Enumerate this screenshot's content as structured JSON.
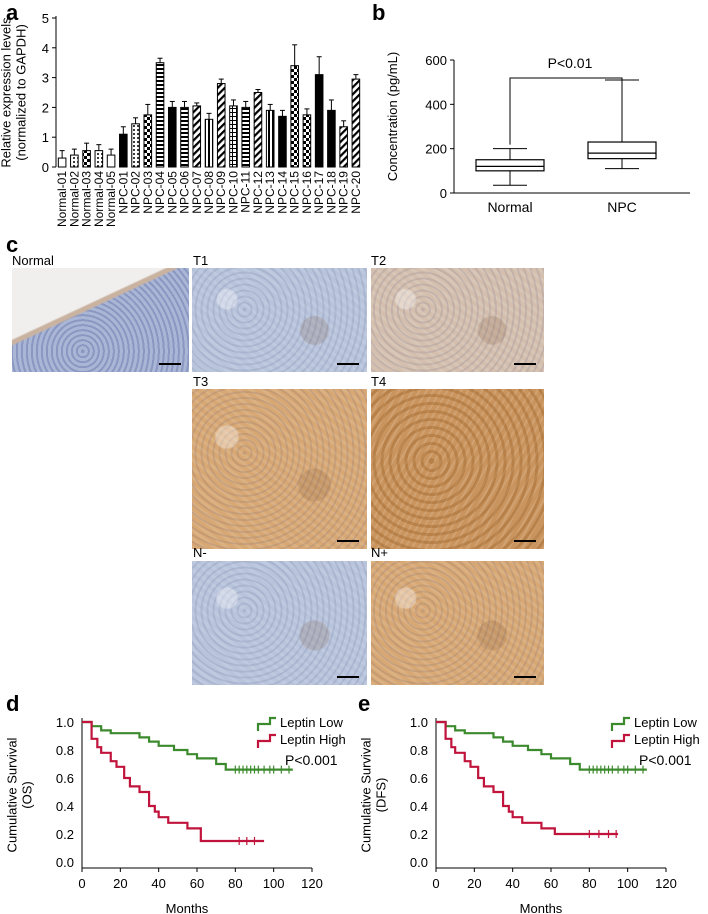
{
  "panels": {
    "a": "a",
    "b": "b",
    "c": "c",
    "d": "d",
    "e": "e"
  },
  "chart_data": [
    {
      "panel": "a",
      "type": "bar",
      "ylabel": "Relative expression levels\n(normalized to GAPDH)",
      "ylim": [
        0,
        5
      ],
      "yticks": [
        0,
        1,
        2,
        3,
        4,
        5
      ],
      "categories": [
        "Normal-01",
        "Normal-02",
        "Normal-03",
        "Normal-04",
        "Normal-05",
        "NPC-01",
        "NPC-02",
        "NPC-03",
        "NPC-04",
        "NPC-05",
        "NPC-06",
        "NPC-07",
        "NPC-08",
        "NPC-09",
        "NPC-10",
        "NPC-11",
        "NPC-12",
        "NPC-13",
        "NPC-14",
        "NPC-15",
        "NPC-16",
        "NPC-17",
        "NPC-18",
        "NPC-19",
        "NPC-20"
      ],
      "values": [
        0.3,
        0.4,
        0.55,
        0.55,
        0.4,
        1.1,
        1.45,
        1.75,
        3.5,
        2.0,
        2.0,
        2.05,
        1.6,
        2.8,
        2.05,
        2.0,
        2.5,
        1.9,
        1.7,
        3.4,
        1.75,
        3.1,
        1.9,
        1.35,
        2.95
      ],
      "errors": [
        0.25,
        0.2,
        0.25,
        0.2,
        0.2,
        0.25,
        0.2,
        0.35,
        0.15,
        0.2,
        0.2,
        0.1,
        0.2,
        0.15,
        0.2,
        0.2,
        0.1,
        0.2,
        0.2,
        0.7,
        0.2,
        0.6,
        0.35,
        0.2,
        0.15
      ],
      "patterns": [
        "open",
        "dots",
        "checker",
        "dots",
        "open",
        "solid",
        "dots",
        "checker",
        "hstripe",
        "solid",
        "hstripe",
        "diag",
        "vstripe",
        "diag",
        "grid",
        "hstripe",
        "diag",
        "vstripe",
        "solid",
        "checker",
        "checker",
        "solid",
        "solid",
        "diag",
        "diag"
      ]
    },
    {
      "panel": "b",
      "type": "boxplot",
      "ylabel": "Concentration (pg/mL)",
      "ylim": [
        0,
        600
      ],
      "yticks": [
        0,
        200,
        400,
        600
      ],
      "categories": [
        "Normal",
        "NPC"
      ],
      "boxes": [
        {
          "min": 35,
          "q1": 100,
          "median": 120,
          "q3": 150,
          "max": 200
        },
        {
          "min": 110,
          "q1": 155,
          "median": 180,
          "q3": 230,
          "max": 510
        }
      ],
      "annotation": "P<0.01"
    },
    {
      "panel": "d",
      "type": "line",
      "subtype": "kaplan-meier",
      "ylabel": "Cumulative Survival\n(OS)",
      "xlabel": "Months",
      "xlim": [
        0,
        120
      ],
      "ylim": [
        0,
        1.0
      ],
      "xticks": [
        0,
        20,
        40,
        60,
        80,
        100,
        120
      ],
      "yticks": [
        0.0,
        0.2,
        0.4,
        0.6,
        0.8,
        1.0
      ],
      "annotation": "P<0.001",
      "series": [
        {
          "name": "Leptin Low",
          "color": "#3c8a2e",
          "x": [
            0,
            5,
            10,
            15,
            20,
            30,
            35,
            40,
            48,
            55,
            60,
            65,
            70,
            75,
            110
          ],
          "y": [
            1.0,
            0.97,
            0.94,
            0.92,
            0.92,
            0.89,
            0.86,
            0.83,
            0.8,
            0.77,
            0.74,
            0.74,
            0.7,
            0.66,
            0.66
          ],
          "censor_x": [
            80,
            82,
            84,
            86,
            88,
            90,
            92,
            95,
            98,
            100,
            104,
            108
          ],
          "censor_y": 0.66
        },
        {
          "name": "Leptin High",
          "color": "#c0143c",
          "x": [
            0,
            5,
            8,
            10,
            15,
            18,
            22,
            25,
            30,
            35,
            38,
            40,
            45,
            55,
            62,
            80,
            95
          ],
          "y": [
            1.0,
            0.88,
            0.82,
            0.78,
            0.72,
            0.68,
            0.6,
            0.54,
            0.5,
            0.4,
            0.36,
            0.32,
            0.28,
            0.24,
            0.15,
            0.15,
            0.15
          ],
          "censor_x": [
            82,
            86,
            90
          ],
          "censor_y": 0.15
        }
      ]
    },
    {
      "panel": "e",
      "type": "line",
      "subtype": "kaplan-meier",
      "ylabel": "Cumulative Survival\n(DFS)",
      "xlabel": "Months",
      "xlim": [
        0,
        120
      ],
      "ylim": [
        0,
        1.0
      ],
      "xticks": [
        0,
        20,
        40,
        60,
        80,
        100,
        120
      ],
      "yticks": [
        0.0,
        0.2,
        0.4,
        0.6,
        0.8,
        1.0
      ],
      "annotation": "P<0.001",
      "series": [
        {
          "name": "Leptin Low",
          "color": "#3c8a2e",
          "x": [
            0,
            5,
            10,
            15,
            20,
            30,
            35,
            40,
            48,
            55,
            60,
            65,
            70,
            75,
            110
          ],
          "y": [
            1.0,
            0.97,
            0.94,
            0.92,
            0.92,
            0.89,
            0.86,
            0.83,
            0.8,
            0.77,
            0.74,
            0.74,
            0.7,
            0.66,
            0.66
          ],
          "censor_x": [
            80,
            82,
            84,
            86,
            88,
            90,
            92,
            95,
            98,
            100,
            104,
            108
          ],
          "censor_y": 0.66
        },
        {
          "name": "Leptin High",
          "color": "#c0143c",
          "x": [
            0,
            5,
            8,
            10,
            15,
            18,
            22,
            25,
            30,
            35,
            38,
            40,
            45,
            55,
            62,
            95
          ],
          "y": [
            1.0,
            0.88,
            0.82,
            0.78,
            0.72,
            0.68,
            0.6,
            0.54,
            0.5,
            0.4,
            0.36,
            0.32,
            0.28,
            0.24,
            0.2,
            0.2
          ],
          "censor_x": [
            80,
            85,
            90,
            94
          ],
          "censor_y": 0.2
        }
      ]
    }
  ],
  "ihc": {
    "images": [
      {
        "id": "normal",
        "label": "Normal",
        "stain": "blue-normal"
      },
      {
        "id": "t1",
        "label": "T1",
        "stain": "blue"
      },
      {
        "id": "t2",
        "label": "T2",
        "stain": "mixed"
      },
      {
        "id": "t3",
        "label": "T3",
        "stain": "brown"
      },
      {
        "id": "t4",
        "label": "T4",
        "stain": "brown-dark"
      },
      {
        "id": "nminus",
        "label": "N-",
        "stain": "blue"
      },
      {
        "id": "nplus",
        "label": "N+",
        "stain": "brown"
      }
    ],
    "colors": {
      "blue": "#b8c4dc",
      "mixed": "#d4bfae",
      "brown": "#d8a874",
      "brown-dark": "#c9945e",
      "blue-normal": "#a9b6d6"
    }
  }
}
